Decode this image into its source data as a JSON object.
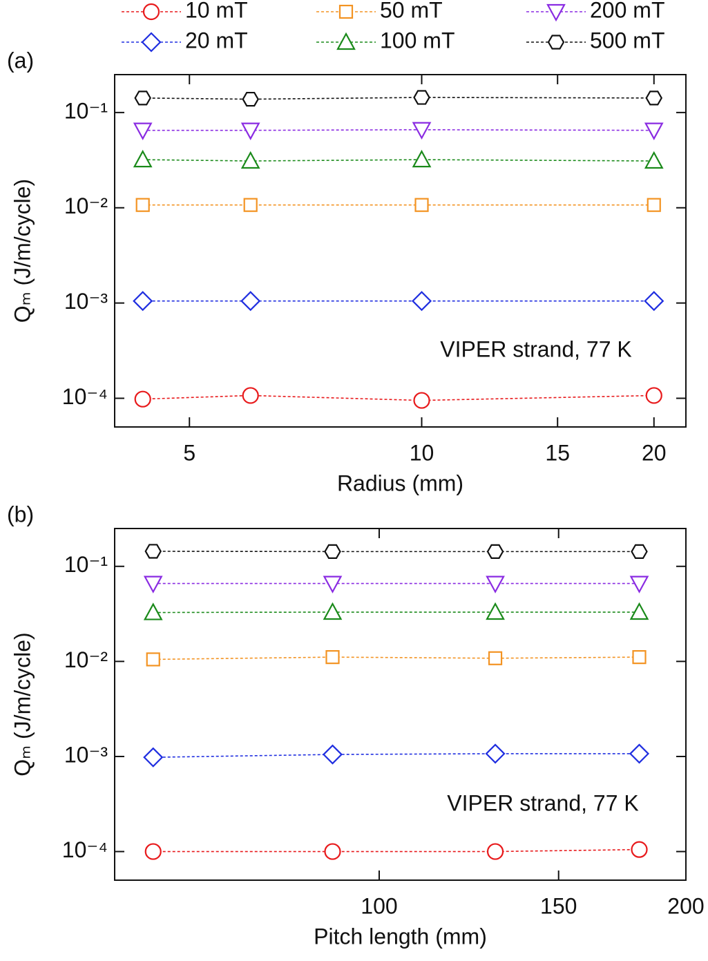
{
  "chart_data": [
    {
      "type": "line",
      "panel_label": "(a)",
      "x_label": "Radius (mm)",
      "y_label": "Qₘ (J/m/cycle)",
      "annotation": "VIPER strand, 77 K",
      "log_x": true,
      "log_y": true,
      "legend": "top",
      "x": [
        4.35,
        6,
        10,
        20
      ],
      "xlim": [
        4,
        22
      ],
      "xticks": [
        5,
        10,
        15,
        20
      ],
      "ylim": [
        5e-05,
        0.25
      ],
      "yticks": [
        {
          "value": 0.1,
          "label": "10⁻¹"
        },
        {
          "value": 0.01,
          "label": "10⁻²"
        },
        {
          "value": 0.001,
          "label": "10⁻³"
        },
        {
          "value": 0.0001,
          "label": "10⁻⁴"
        }
      ],
      "series": [
        {
          "name": "10 mT",
          "color": "#e8191b",
          "marker": "circle",
          "values": [
            9.8e-05,
            0.000107,
            9.5e-05,
            0.000107
          ]
        },
        {
          "name": "20 mT",
          "color": "#1f2ee0",
          "marker": "diamond",
          "values": [
            0.00105,
            0.00105,
            0.00105,
            0.00105
          ]
        },
        {
          "name": "50 mT",
          "color": "#f39322",
          "marker": "square",
          "values": [
            0.0107,
            0.0107,
            0.0107,
            0.0107
          ]
        },
        {
          "name": "100 mT",
          "color": "#1a8a1a",
          "marker": "triangle",
          "values": [
            0.032,
            0.031,
            0.032,
            0.031
          ]
        },
        {
          "name": "200 mT",
          "color": "#8a2be2",
          "marker": "triangle-down",
          "values": [
            0.065,
            0.065,
            0.066,
            0.065
          ]
        },
        {
          "name": "500 mT",
          "color": "#111111",
          "marker": "hexagon",
          "values": [
            0.142,
            0.138,
            0.144,
            0.142
          ]
        }
      ]
    },
    {
      "type": "line",
      "panel_label": "(b)",
      "x_label": "Pitch length (mm)",
      "y_label": "Qₘ (J/m/cycle)",
      "annotation": "VIPER strand, 77 K",
      "log_x": true,
      "log_y": true,
      "x": [
        60,
        90,
        130,
        180
      ],
      "xlim": [
        55,
        200
      ],
      "xticks": [
        100,
        150,
        200
      ],
      "ylim": [
        5e-05,
        0.25
      ],
      "yticks": [
        {
          "value": 0.1,
          "label": "10⁻¹"
        },
        {
          "value": 0.01,
          "label": "10⁻²"
        },
        {
          "value": 0.001,
          "label": "10⁻³"
        },
        {
          "value": 0.0001,
          "label": "10⁻⁴"
        }
      ],
      "series": [
        {
          "color": "#e8191b",
          "marker": "circle",
          "values": [
            0.0001,
            0.0001,
            0.0001,
            0.000105
          ]
        },
        {
          "color": "#1f2ee0",
          "marker": "diamond",
          "values": [
            0.00098,
            0.00105,
            0.00107,
            0.00107
          ]
        },
        {
          "color": "#f39322",
          "marker": "square",
          "values": [
            0.0105,
            0.0111,
            0.0108,
            0.0111
          ]
        },
        {
          "color": "#1a8a1a",
          "marker": "triangle",
          "values": [
            0.0327,
            0.033,
            0.033,
            0.033
          ]
        },
        {
          "color": "#8a2be2",
          "marker": "triangle-down",
          "values": [
            0.066,
            0.066,
            0.066,
            0.066
          ]
        },
        {
          "color": "#111111",
          "marker": "hexagon",
          "values": [
            0.144,
            0.143,
            0.143,
            0.143
          ]
        }
      ]
    }
  ]
}
